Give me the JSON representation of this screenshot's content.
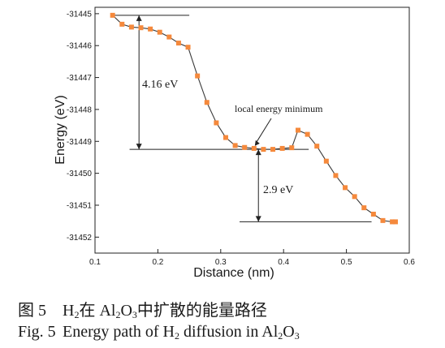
{
  "chart_data": {
    "type": "line",
    "xlabel": "Distance (nm)",
    "ylabel": "Energy (eV)",
    "xlim": [
      0.1,
      0.6
    ],
    "ylim": [
      -31452.5,
      -31444.8
    ],
    "x_ticks": [
      "0.1",
      "0.2",
      "0.3",
      "0.4",
      "0.5",
      "0.6"
    ],
    "y_ticks": [
      "-31445",
      "-31446",
      "-31447",
      "-31448",
      "-31449",
      "-31450",
      "-31451",
      "-31452"
    ],
    "grid": false,
    "marker_color": "#f5893c",
    "line_color": "#3a3a3a",
    "series": [
      {
        "x": [
          0.128,
          0.143,
          0.158,
          0.173,
          0.188,
          0.203,
          0.218,
          0.233,
          0.248,
          0.263,
          0.278,
          0.293,
          0.308,
          0.323,
          0.338,
          0.353,
          0.368,
          0.383,
          0.398,
          0.413,
          0.423,
          0.438,
          0.453,
          0.468,
          0.483,
          0.498,
          0.513,
          0.528,
          0.543,
          0.558,
          0.573,
          0.578
        ],
        "y": [
          -31445.05,
          -31445.33,
          -31445.42,
          -31445.44,
          -31445.48,
          -31445.58,
          -31445.73,
          -31445.92,
          -31446.05,
          -31446.95,
          -31447.78,
          -31448.42,
          -31448.88,
          -31449.13,
          -31449.19,
          -31449.22,
          -31449.25,
          -31449.25,
          -31449.22,
          -31449.2,
          -31448.65,
          -31448.78,
          -31449.15,
          -31449.62,
          -31450.07,
          -31450.45,
          -31450.73,
          -31451.08,
          -31451.28,
          -31451.48,
          -31451.52,
          -31451.52
        ]
      }
    ],
    "annotations": {
      "barrier_label": "4.16 eV",
      "minimum_label": "local energy minimum",
      "drop_label": "2.9 eV"
    }
  },
  "caption": {
    "cn_index": "图 5",
    "cn_text_parts": [
      "H",
      "2",
      "在 Al",
      "2",
      "O",
      "3",
      "中扩散的能量路径"
    ],
    "en_index": "Fig. 5",
    "en_text_parts": [
      "Energy path of H",
      "2",
      " diffusion in Al",
      "2",
      "O",
      "3"
    ]
  }
}
